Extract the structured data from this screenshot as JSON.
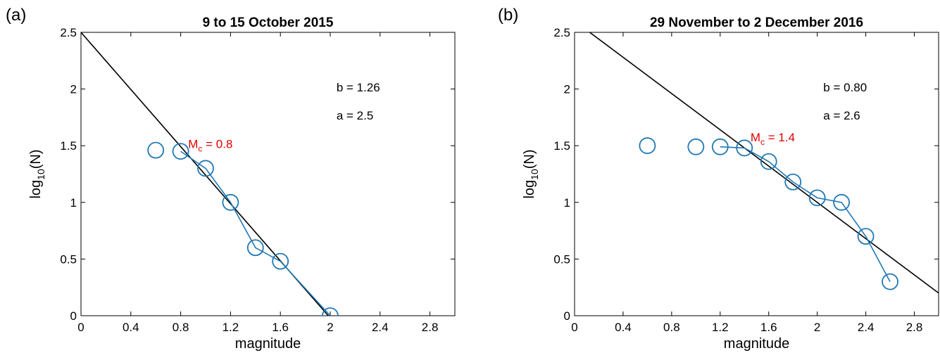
{
  "colors": {
    "data": "#1f77b4",
    "fit": "#000000",
    "mc": "#e00000"
  },
  "chart_data": [
    {
      "panel_label": "(a)",
      "type": "scatter",
      "title": "9 to 15 October 2015",
      "xlabel": "magnitude",
      "ylabel_base": "log",
      "ylabel_sub": "10",
      "ylabel_rest": "(N)",
      "xlim": [
        0,
        3
      ],
      "ylim": [
        0,
        2.5
      ],
      "xticks": [
        "0",
        "0.4",
        "0.8",
        "1.2",
        "1.6",
        "2",
        "2.4",
        "2.8"
      ],
      "xtick_values": [
        0,
        0.4,
        0.8,
        1.2,
        1.6,
        2,
        2.4,
        2.8
      ],
      "yticks": [
        "0",
        "0.5",
        "1",
        "1.5",
        "2",
        "2.5"
      ],
      "ytick_values": [
        0,
        0.5,
        1,
        1.5,
        2,
        2.5
      ],
      "grid": false,
      "points": [
        {
          "x": 0.6,
          "y": 1.46
        },
        {
          "x": 0.8,
          "y": 1.45
        },
        {
          "x": 1.0,
          "y": 1.3
        },
        {
          "x": 1.2,
          "y": 1.0
        },
        {
          "x": 1.4,
          "y": 0.6
        },
        {
          "x": 1.6,
          "y": 0.48
        },
        {
          "x": 2.0,
          "y": 0.0
        }
      ],
      "connected_from_index": 1,
      "fit": {
        "b": 1.26,
        "a": 2.5,
        "x_start": 0,
        "x_end": 2.0
      },
      "annotations": {
        "b_text": "b = 1.26",
        "a_text": "a = 2.5",
        "b_pos": {
          "x": 2.05,
          "y": 1.98
        },
        "a_pos": {
          "x": 2.05,
          "y": 1.73
        }
      },
      "mc": {
        "prefix": "M",
        "sub": "c",
        "suffix": " = 0.8",
        "x": 0.86,
        "y": 1.48
      }
    },
    {
      "panel_label": "(b)",
      "type": "scatter",
      "title": "29 November to 2 December 2016",
      "xlabel": "magnitude",
      "ylabel_base": "log",
      "ylabel_sub": "10",
      "ylabel_rest": "(N)",
      "xlim": [
        0,
        3
      ],
      "ylim": [
        0,
        2.5
      ],
      "xticks": [
        "0",
        "0.4",
        "0.8",
        "1.2",
        "1.6",
        "2",
        "2.4",
        "2.8"
      ],
      "xtick_values": [
        0,
        0.4,
        0.8,
        1.2,
        1.6,
        2,
        2.4,
        2.8
      ],
      "yticks": [
        "0",
        "0.5",
        "1",
        "1.5",
        "2",
        "2.5"
      ],
      "ytick_values": [
        0,
        0.5,
        1,
        1.5,
        2,
        2.5
      ],
      "grid": false,
      "points": [
        {
          "x": 0.6,
          "y": 1.5
        },
        {
          "x": 1.0,
          "y": 1.49
        },
        {
          "x": 1.2,
          "y": 1.49
        },
        {
          "x": 1.4,
          "y": 1.48
        },
        {
          "x": 1.6,
          "y": 1.36
        },
        {
          "x": 1.8,
          "y": 1.18
        },
        {
          "x": 2.0,
          "y": 1.04
        },
        {
          "x": 2.2,
          "y": 1.0
        },
        {
          "x": 2.4,
          "y": 0.7
        },
        {
          "x": 2.6,
          "y": 0.3
        }
      ],
      "connected_from_index": 2,
      "fit": {
        "b": 0.8,
        "a": 2.6,
        "x_start": 0.12,
        "x_end": 3.0
      },
      "annotations": {
        "b_text": "b = 0.80",
        "a_text": "a = 2.6",
        "b_pos": {
          "x": 2.05,
          "y": 1.98
        },
        "a_pos": {
          "x": 2.05,
          "y": 1.73
        }
      },
      "mc": {
        "prefix": "M",
        "sub": "c",
        "suffix": " = 1.4",
        "x": 1.45,
        "y": 1.54
      }
    }
  ]
}
